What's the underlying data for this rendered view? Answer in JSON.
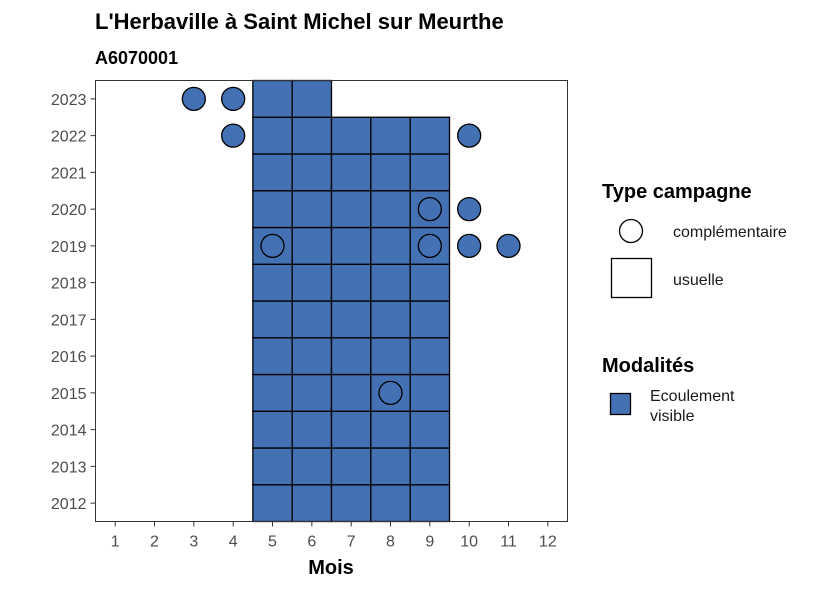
{
  "chart_data": {
    "type": "heatmap",
    "title": "L'Herbaville à Saint Michel sur Meurthe",
    "subtitle": "A6070001",
    "xlabel": "Mois",
    "ylabel": "",
    "x_ticks": [
      1,
      2,
      3,
      4,
      5,
      6,
      7,
      8,
      9,
      10,
      11,
      12
    ],
    "y_ticks": [
      2012,
      2013,
      2014,
      2015,
      2016,
      2017,
      2018,
      2019,
      2020,
      2021,
      2022,
      2023
    ],
    "xlim": [
      0.5,
      12.5
    ],
    "ylim": [
      2011.5,
      2023.5
    ],
    "grid": false,
    "legend_position": "right",
    "fill_color": "#4470b4",
    "modalite_label": "Ecoulement visible",
    "usuelle": [
      {
        "year": 2012,
        "months": [
          5,
          6,
          7,
          8,
          9
        ]
      },
      {
        "year": 2013,
        "months": [
          5,
          6,
          7,
          8,
          9
        ]
      },
      {
        "year": 2014,
        "months": [
          5,
          6,
          7,
          8,
          9
        ]
      },
      {
        "year": 2015,
        "months": [
          5,
          6,
          7,
          8,
          9
        ]
      },
      {
        "year": 2016,
        "months": [
          5,
          6,
          7,
          8,
          9
        ]
      },
      {
        "year": 2017,
        "months": [
          5,
          6,
          7,
          8,
          9
        ]
      },
      {
        "year": 2018,
        "months": [
          5,
          6,
          7,
          8,
          9
        ]
      },
      {
        "year": 2019,
        "months": [
          5,
          6,
          7,
          8,
          9
        ]
      },
      {
        "year": 2020,
        "months": [
          5,
          6,
          7,
          8,
          9
        ]
      },
      {
        "year": 2021,
        "months": [
          5,
          6,
          7,
          8,
          9
        ]
      },
      {
        "year": 2022,
        "months": [
          5,
          6,
          7,
          8,
          9
        ]
      },
      {
        "year": 2023,
        "months": [
          5,
          6
        ]
      }
    ],
    "complementaire": [
      {
        "year": 2023,
        "month": 3,
        "filled": true
      },
      {
        "year": 2023,
        "month": 4,
        "filled": true
      },
      {
        "year": 2022,
        "month": 4,
        "filled": true
      },
      {
        "year": 2022,
        "month": 10,
        "filled": true
      },
      {
        "year": 2020,
        "month": 9,
        "filled": true
      },
      {
        "year": 2020,
        "month": 10,
        "filled": true
      },
      {
        "year": 2019,
        "month": 5,
        "filled": true
      },
      {
        "year": 2019,
        "month": 9,
        "filled": true
      },
      {
        "year": 2019,
        "month": 10,
        "filled": true
      },
      {
        "year": 2019,
        "month": 11,
        "filled": true
      },
      {
        "year": 2015,
        "month": 8,
        "filled": true
      }
    ]
  },
  "legend": {
    "type_title": "Type campagne",
    "type_items": [
      "complémentaire",
      "usuelle"
    ],
    "modalites_title": "Modalités",
    "modalites_line1": "Ecoulement",
    "modalites_line2": "visible"
  }
}
